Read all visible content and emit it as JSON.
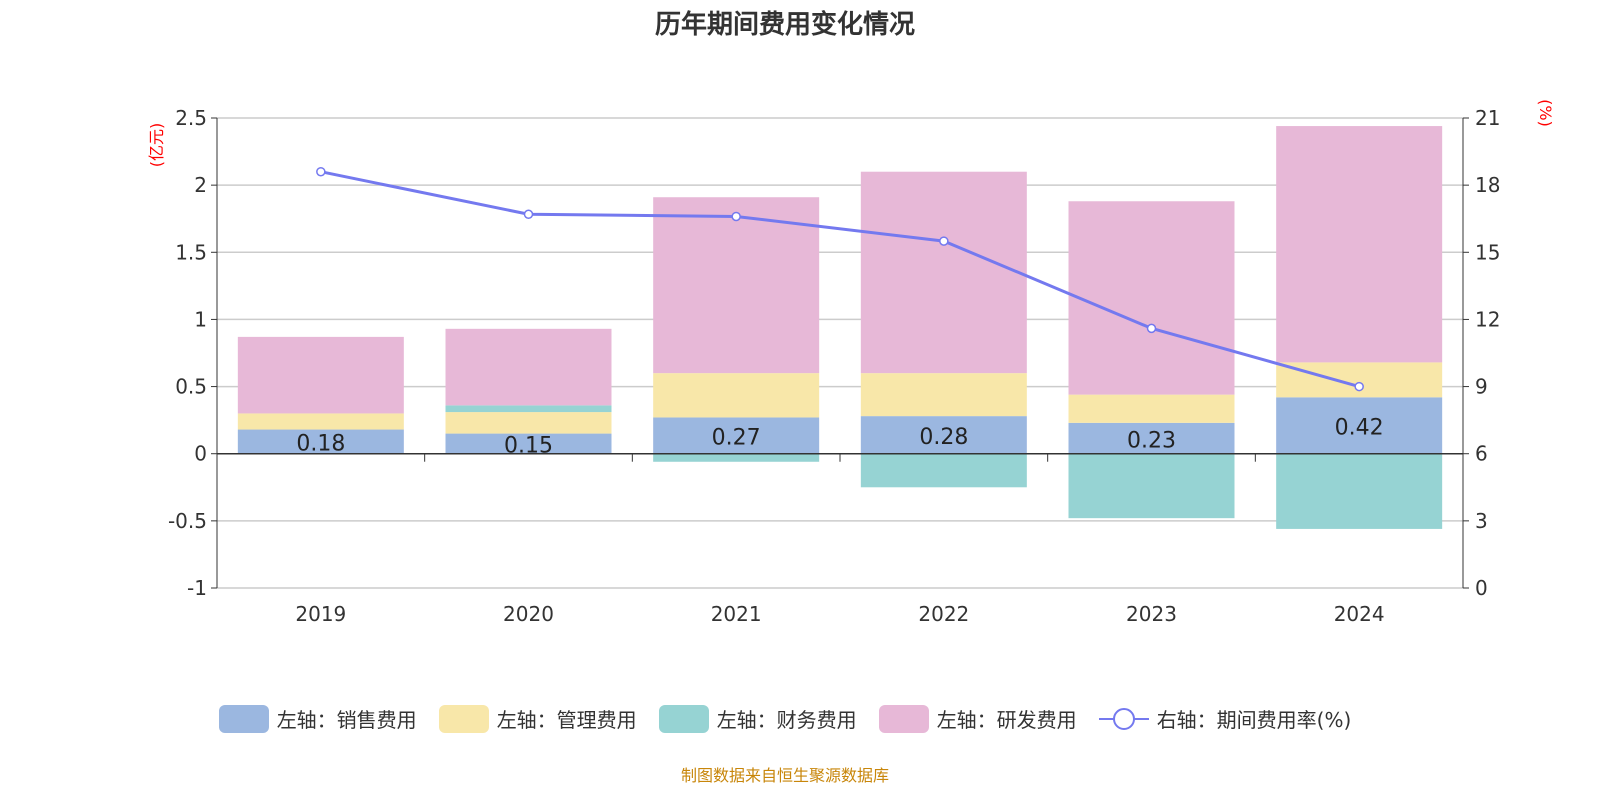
{
  "chart_data": {
    "type": "bar",
    "title": "历年期间费用变化情况",
    "stacked": true,
    "categories": [
      "2019",
      "2020",
      "2021",
      "2022",
      "2023",
      "2024"
    ],
    "left_axis": {
      "unit": "(亿元)",
      "ylim": [
        -1,
        2.5
      ],
      "ticks": [
        -1,
        -0.5,
        0,
        0.5,
        1,
        1.5,
        2,
        2.5
      ],
      "tick_labels": [
        "-1",
        "-0.5",
        "0",
        "0.5",
        "1",
        "1.5",
        "2",
        "2.5"
      ]
    },
    "right_axis": {
      "unit": "(%)",
      "ylim": [
        0,
        21
      ],
      "ticks": [
        0,
        3,
        6,
        9,
        12,
        15,
        18,
        21
      ]
    },
    "grid": true,
    "legend_placement": "bottom",
    "series": [
      {
        "name": "左轴：销售费用",
        "type": "bar",
        "color": "#9bb7e0",
        "values": [
          0.18,
          0.15,
          0.27,
          0.28,
          0.23,
          0.42
        ],
        "labels": [
          "0.18",
          "0.15",
          "0.27",
          "0.28",
          "0.23",
          "0.42"
        ]
      },
      {
        "name": "左轴：管理费用",
        "type": "bar",
        "color": "#f8e7a9",
        "values": [
          0.12,
          0.16,
          0.33,
          0.32,
          0.21,
          0.26
        ]
      },
      {
        "name": "左轴：财务费用",
        "type": "bar",
        "color": "#96d3d3",
        "values": [
          0.0,
          0.05,
          -0.06,
          -0.25,
          -0.48,
          -0.56
        ]
      },
      {
        "name": "左轴：研发费用",
        "type": "bar",
        "color": "#e7b8d7",
        "values": [
          0.57,
          0.57,
          1.31,
          1.5,
          1.44,
          1.76
        ]
      },
      {
        "name": "右轴：期间费用率(%)",
        "type": "line",
        "axis": "right",
        "color": "#7479ef",
        "values": [
          18.6,
          16.7,
          16.6,
          15.5,
          11.6,
          9.0
        ]
      }
    ]
  },
  "source": "制图数据来自恒生聚源数据库"
}
